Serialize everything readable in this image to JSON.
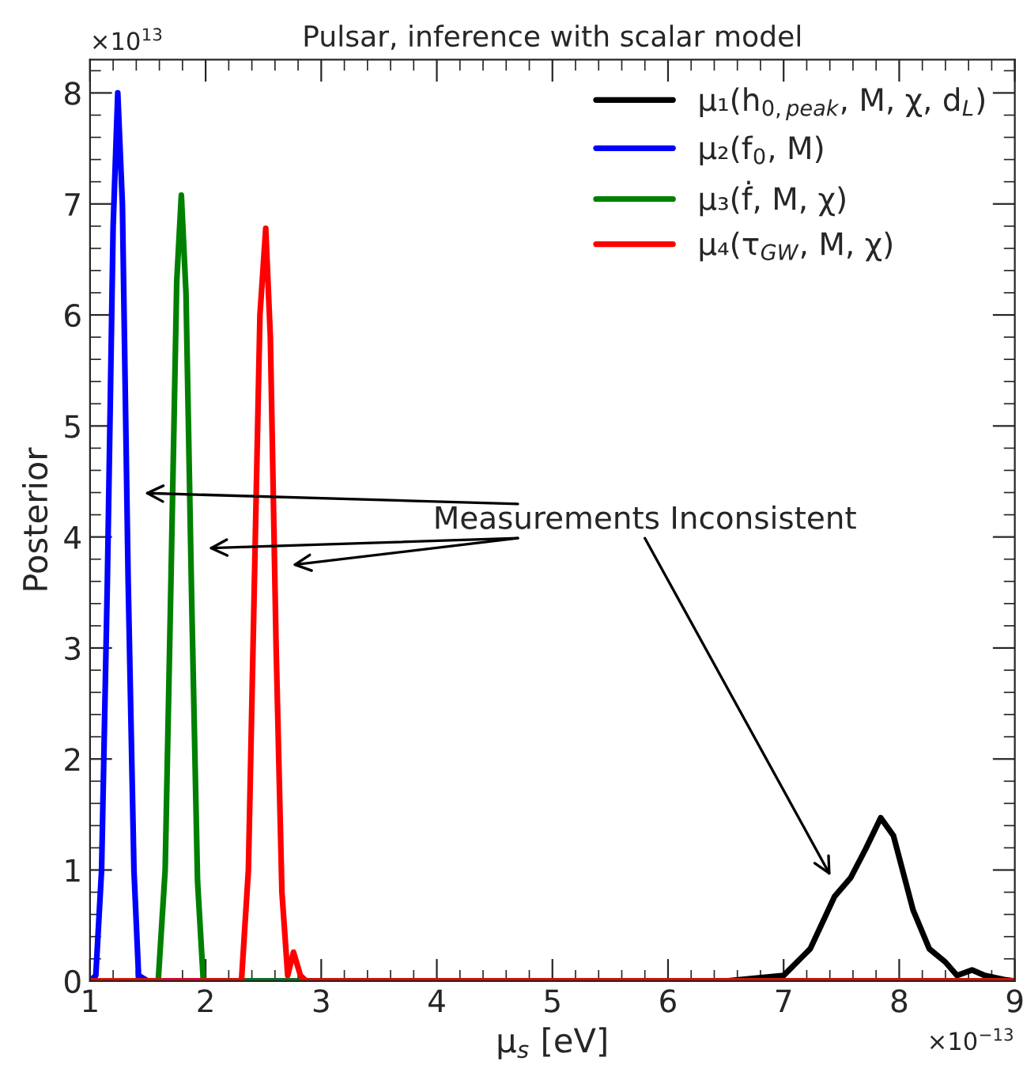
{
  "chart_data": {
    "type": "line",
    "title": "Pulsar, inference with scalar model",
    "xlabel": "μ$_{s}$ [eV]",
    "ylabel": "Posterior",
    "xlim": [
      1,
      9
    ],
    "ylim": [
      0,
      8.3
    ],
    "xticks": [
      1,
      2,
      3,
      4,
      5,
      6,
      7,
      8,
      9
    ],
    "yticks": [
      0,
      1,
      2,
      3,
      4,
      5,
      6,
      7,
      8
    ],
    "grid": false,
    "legend": "top right",
    "marker": "none",
    "line_style": "solid",
    "series": [
      {
        "name": "μ₁(h$_{0,peak}$, M, χ, d$_{L}$)",
        "color": "#000000",
        "x": [
          6.5,
          7.0,
          7.23,
          7.44,
          7.58,
          7.71,
          7.84,
          7.95,
          8.12,
          8.26,
          8.4,
          8.5,
          8.63,
          8.74,
          8.92,
          9.0
        ],
        "values": [
          0,
          0.05,
          0.29,
          0.76,
          0.93,
          1.19,
          1.47,
          1.31,
          0.64,
          0.29,
          0.17,
          0.05,
          0.1,
          0.05,
          0.01,
          0
        ]
      },
      {
        "name": "μ₂(f$_{0}$, M)",
        "color": "#0000ff",
        "x": [
          1.0,
          1.05,
          1.1,
          1.15,
          1.2,
          1.24,
          1.28,
          1.33,
          1.38,
          1.42,
          1.5,
          9.0
        ],
        "values": [
          0,
          0.05,
          1.0,
          3.6,
          6.8,
          8.0,
          7.0,
          3.6,
          1.0,
          0.05,
          0,
          0
        ]
      },
      {
        "name": "μ₃(ḟ, M, χ)",
        "color": "#008000",
        "x": [
          1.0,
          1.59,
          1.65,
          1.7,
          1.75,
          1.79,
          1.83,
          1.88,
          1.93,
          1.98,
          9.0
        ],
        "values": [
          0,
          0,
          1.0,
          3.6,
          6.3,
          7.08,
          6.2,
          3.4,
          0.9,
          0,
          0
        ]
      },
      {
        "name": "μ₄(τ$_{GW}$, M, χ)",
        "color": "#ff0000",
        "x": [
          1.0,
          2.31,
          2.37,
          2.42,
          2.47,
          2.52,
          2.56,
          2.61,
          2.66,
          2.71,
          2.76,
          2.82,
          2.87,
          9.0
        ],
        "values": [
          0,
          0,
          1.0,
          3.5,
          6.0,
          6.78,
          5.8,
          3.0,
          0.8,
          0.05,
          0.26,
          0.05,
          0,
          0
        ]
      }
    ],
    "annotations": [
      "Measurements Inconsistent",
      "×10$^{13}$",
      "×10$^{−13}$"
    ]
  }
}
